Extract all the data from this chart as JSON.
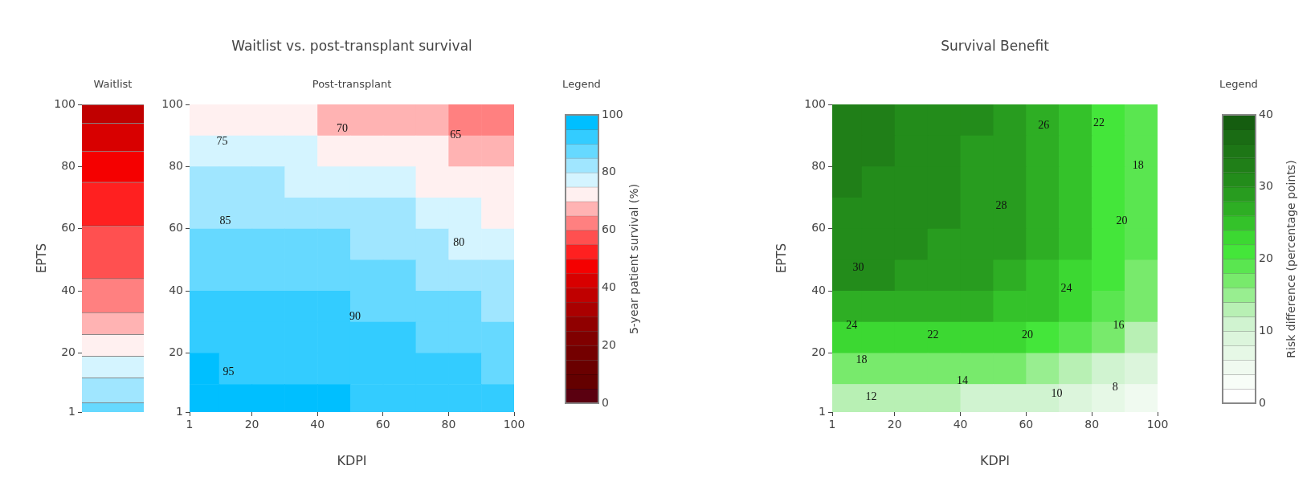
{
  "chart_data": [
    {
      "type": "bar",
      "stacked": true,
      "subtitle": "Waitlist",
      "ylabel": "EPTS",
      "categories": [
        null
      ],
      "ylim": [
        1,
        100
      ],
      "yticks": [
        1,
        20,
        40,
        60,
        80,
        100
      ],
      "tick_labels": "y",
      "series": [
        {
          "color": "#66d9ff",
          "values": [
            4
          ]
        },
        {
          "color": "#a0e6ff",
          "values": [
            8
          ]
        },
        {
          "color": "#d4f4ff",
          "values": [
            7
          ]
        },
        {
          "color": "#fff0f0",
          "values": [
            7
          ]
        },
        {
          "color": "#ffb3b3",
          "values": [
            7
          ]
        },
        {
          "color": "#ff8080",
          "values": [
            11
          ]
        },
        {
          "color": "#ff5050",
          "values": [
            17
          ]
        },
        {
          "color": "#ff2020",
          "values": [
            14
          ]
        },
        {
          "color": "#f50000",
          "values": [
            10
          ]
        },
        {
          "color": "#d80000",
          "values": [
            9
          ]
        },
        {
          "color": "#c00000",
          "values": [
            6
          ]
        }
      ]
    },
    {
      "type": "scatter",
      "title": "Waitlist vs. post-transplant survival",
      "subtitle": "Post-transplant",
      "xlabel": "KDPI",
      "legend_title": "Legend",
      "clabel": "5-year patient survival (%)",
      "clim": [
        0,
        100
      ],
      "cticks": [
        0,
        20,
        40,
        60,
        80,
        100
      ],
      "marker": "square",
      "xlim": [
        1,
        100
      ],
      "xticks": [
        1,
        20,
        40,
        60,
        80,
        100
      ],
      "ylim": [
        1,
        100
      ],
      "yticks": [
        1,
        20,
        40,
        60,
        80,
        100
      ],
      "x": [
        5,
        15,
        25,
        35,
        45,
        55,
        65,
        75,
        85,
        95,
        5,
        15,
        25,
        35,
        45,
        55,
        65,
        75,
        85,
        95,
        5,
        15,
        25,
        35,
        45,
        55,
        65,
        75,
        85,
        95,
        5,
        15,
        25,
        35,
        45,
        55,
        65,
        75,
        85,
        95,
        5,
        15,
        25,
        35,
        45,
        55,
        65,
        75,
        85,
        95,
        5,
        15,
        25,
        35,
        45,
        55,
        65,
        75,
        85,
        95,
        5,
        15,
        25,
        35,
        45,
        55,
        65,
        75,
        85,
        95,
        5,
        15,
        25,
        35,
        45,
        55,
        65,
        75,
        85,
        95,
        5,
        15,
        25,
        35,
        45,
        55,
        65,
        75,
        85,
        95,
        5,
        15,
        25,
        35,
        45,
        55,
        65,
        75,
        85,
        95
      ],
      "values": [
        95,
        95,
        95,
        95,
        95,
        95,
        95,
        95,
        95,
        95,
        85,
        85,
        85,
        85,
        85,
        85,
        85,
        85,
        85,
        85,
        75,
        75,
        75,
        75,
        75,
        75,
        75,
        75,
        75,
        75,
        65,
        65,
        65,
        65,
        65,
        65,
        65,
        65,
        65,
        65,
        55,
        55,
        55,
        55,
        55,
        55,
        55,
        55,
        55,
        55,
        45,
        45,
        45,
        45,
        45,
        45,
        45,
        45,
        45,
        45,
        35,
        35,
        35,
        35,
        35,
        35,
        35,
        35,
        35,
        35,
        25,
        25,
        25,
        25,
        25,
        25,
        25,
        25,
        25,
        25,
        15,
        15,
        15,
        15,
        15,
        15,
        15,
        15,
        15,
        15,
        5,
        5,
        5,
        5,
        5,
        5,
        5,
        5,
        5,
        5
      ],
      "cvalues": [
        72,
        71,
        71,
        70,
        69,
        68,
        67,
        65,
        63,
        62,
        77,
        76,
        76,
        75,
        74,
        73,
        72,
        70,
        69,
        67,
        81,
        80,
        80,
        79,
        79,
        77,
        76,
        74,
        72,
        71,
        84,
        84,
        84,
        83,
        82,
        81,
        80,
        78,
        76,
        74,
        87,
        86,
        86,
        86,
        85,
        84,
        83,
        81,
        79,
        77,
        89,
        89,
        89,
        88,
        87,
        86,
        85,
        84,
        82,
        81,
        91,
        91,
        91,
        90,
        90,
        89,
        88,
        86,
        85,
        84,
        93,
        93,
        93,
        92,
        92,
        91,
        90,
        89,
        87,
        86,
        95,
        94,
        94,
        94,
        93,
        93,
        92,
        91,
        90,
        89,
        96,
        96,
        96,
        95,
        95,
        94,
        94,
        93,
        92,
        91
      ],
      "annotations": [
        "70",
        "65",
        "75",
        "85",
        "80",
        "90",
        "95"
      ]
    },
    {
      "type": "scatter",
      "title": "Survival Benefit",
      "xlabel": "KDPI",
      "ylabel": "EPTS",
      "legend_title": "Legend",
      "clabel": "Risk difference (percentage points)",
      "clim": [
        0,
        40
      ],
      "cticks": [
        0,
        10,
        20,
        30,
        40
      ],
      "marker": "square",
      "xlim": [
        1,
        100
      ],
      "xticks": [
        1,
        20,
        40,
        60,
        80,
        100
      ],
      "ylim": [
        1,
        100
      ],
      "yticks": [
        1,
        20,
        40,
        60,
        80,
        100
      ],
      "x": [
        5,
        15,
        25,
        35,
        45,
        55,
        65,
        75,
        85,
        95,
        5,
        15,
        25,
        35,
        45,
        55,
        65,
        75,
        85,
        95,
        5,
        15,
        25,
        35,
        45,
        55,
        65,
        75,
        85,
        95,
        5,
        15,
        25,
        35,
        45,
        55,
        65,
        75,
        85,
        95,
        5,
        15,
        25,
        35,
        45,
        55,
        65,
        75,
        85,
        95,
        5,
        15,
        25,
        35,
        45,
        55,
        65,
        75,
        85,
        95,
        5,
        15,
        25,
        35,
        45,
        55,
        65,
        75,
        85,
        95,
        5,
        15,
        25,
        35,
        45,
        55,
        65,
        75,
        85,
        95,
        5,
        15,
        25,
        35,
        45,
        55,
        65,
        75,
        85,
        95,
        5,
        15,
        25,
        35,
        45,
        55,
        65,
        75,
        85,
        95
      ],
      "values": [
        95,
        95,
        95,
        95,
        95,
        95,
        95,
        95,
        95,
        95,
        85,
        85,
        85,
        85,
        85,
        85,
        85,
        85,
        85,
        85,
        75,
        75,
        75,
        75,
        75,
        75,
        75,
        75,
        75,
        75,
        65,
        65,
        65,
        65,
        65,
        65,
        65,
        65,
        65,
        65,
        55,
        55,
        55,
        55,
        55,
        55,
        55,
        55,
        55,
        55,
        45,
        45,
        45,
        45,
        45,
        45,
        45,
        45,
        45,
        45,
        35,
        35,
        35,
        35,
        35,
        35,
        35,
        35,
        35,
        35,
        25,
        25,
        25,
        25,
        25,
        25,
        25,
        25,
        25,
        25,
        15,
        15,
        15,
        15,
        15,
        15,
        15,
        15,
        15,
        15,
        5,
        5,
        5,
        5,
        5,
        5,
        5,
        5,
        5,
        5
      ],
      "cvalues": [
        33,
        32,
        31,
        31,
        30,
        28,
        26,
        24,
        21,
        18,
        32,
        32,
        31,
        31,
        29,
        28,
        26,
        24,
        21,
        18,
        32,
        31,
        31,
        30,
        29,
        28,
        26,
        24,
        21,
        19,
        31,
        31,
        30,
        30,
        29,
        28,
        26,
        24,
        21,
        19,
        31,
        31,
        30,
        29,
        29,
        28,
        26,
        24,
        21,
        19,
        30,
        30,
        29,
        29,
        28,
        27,
        25,
        23,
        20,
        17,
        27,
        27,
        27,
        27,
        26,
        25,
        24,
        22,
        19,
        16,
        23,
        23,
        22,
        22,
        22,
        22,
        21,
        19,
        16,
        13,
        17,
        17,
        17,
        17,
        16,
        16,
        15,
        13,
        11,
        9,
        12,
        12,
        12,
        12,
        11,
        11,
        10,
        9,
        7,
        4
      ],
      "annotations": [
        "30",
        "28",
        "26",
        "22",
        "18",
        "20",
        "24",
        "24",
        "22",
        "20",
        "18",
        "16",
        "14",
        "12",
        "10",
        "8"
      ]
    }
  ]
}
